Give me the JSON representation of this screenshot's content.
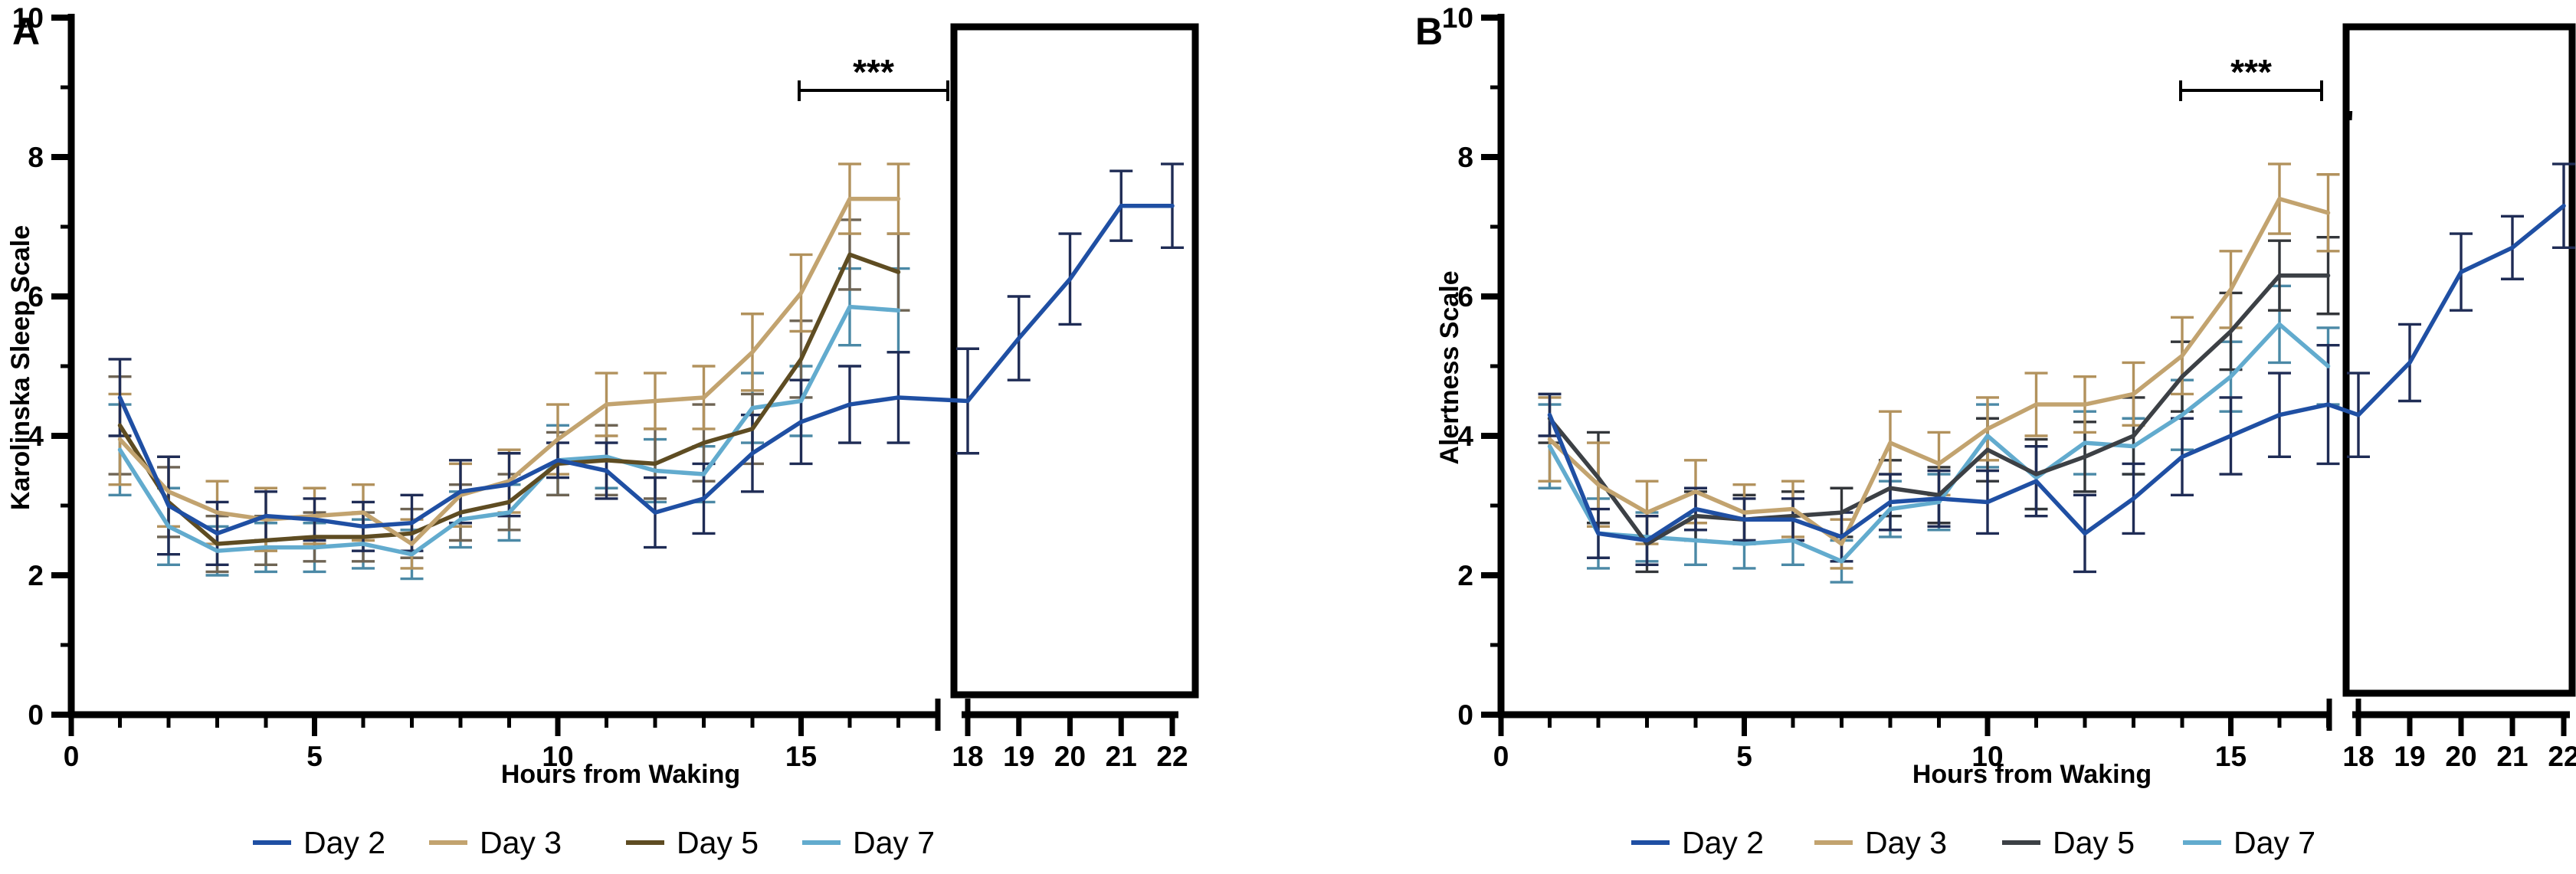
{
  "figure": {
    "background": "#ffffff",
    "axis_color": "#000000",
    "significance_label": "***"
  },
  "chart_data": [
    {
      "type": "line",
      "panel_label": "A",
      "ylabel": "Karolinska Sleep Scale",
      "xlabel": "Hours from Waking",
      "ylim": [
        0,
        10
      ],
      "yticks": [
        0,
        2,
        4,
        6,
        8,
        10
      ],
      "xticks_main": [
        0,
        5,
        10,
        15
      ],
      "xticks_box": [
        18,
        19,
        20,
        21,
        22
      ],
      "x_hours": [
        1,
        2,
        3,
        4,
        5,
        6,
        7,
        8,
        9,
        10,
        11,
        12,
        13,
        14,
        15,
        16,
        17
      ],
      "box_hours": [
        18,
        19,
        20,
        21,
        22
      ],
      "grid": "off",
      "legend_position": "bottom",
      "significance": {
        "label": "***",
        "from_hour": 15.1,
        "to_hour": 18.0
      },
      "series": [
        {
          "name": "Day 7",
          "color": "#62abce",
          "err_color": "#4b89a6",
          "values": [
            3.8,
            2.7,
            2.35,
            2.4,
            2.4,
            2.45,
            2.3,
            2.8,
            2.9,
            3.65,
            3.7,
            3.5,
            3.45,
            4.4,
            4.5,
            5.85,
            5.8
          ],
          "err": [
            0.65,
            0.55,
            0.35,
            0.35,
            0.35,
            0.35,
            0.35,
            0.4,
            0.4,
            0.5,
            0.45,
            0.45,
            0.4,
            0.5,
            0.5,
            0.55,
            0.6
          ]
        },
        {
          "name": "Day 5",
          "color": "#5e4c22",
          "err_color": "#6e6454",
          "values": [
            4.15,
            3.05,
            2.45,
            2.5,
            2.55,
            2.55,
            2.6,
            2.9,
            3.05,
            3.6,
            3.65,
            3.6,
            3.9,
            4.1,
            5.1,
            6.6,
            6.35
          ],
          "err": [
            0.7,
            0.5,
            0.4,
            0.35,
            0.35,
            0.35,
            0.35,
            0.4,
            0.4,
            0.45,
            0.5,
            0.5,
            0.55,
            0.5,
            0.55,
            0.5,
            0.55
          ]
        },
        {
          "name": "Day 3",
          "color": "#c2a36f",
          "err_color": "#b2925d",
          "values": [
            3.95,
            3.2,
            2.9,
            2.8,
            2.85,
            2.9,
            2.45,
            3.15,
            3.35,
            3.95,
            4.45,
            4.5,
            4.55,
            5.2,
            6.05,
            7.4,
            7.4
          ],
          "err": [
            0.65,
            0.5,
            0.45,
            0.45,
            0.4,
            0.4,
            0.35,
            0.45,
            0.45,
            0.5,
            0.45,
            0.4,
            0.45,
            0.55,
            0.55,
            0.5,
            0.5
          ]
        },
        {
          "name": "Day 2",
          "color": "#1f4fa3",
          "err_color": "#1f2c55",
          "values": [
            4.55,
            3.0,
            2.6,
            2.85,
            2.8,
            2.7,
            2.75,
            3.2,
            3.3,
            3.65,
            3.5,
            2.9,
            3.1,
            3.75,
            4.2,
            4.45,
            4.55
          ],
          "err": [
            0.55,
            0.7,
            0.45,
            0.35,
            0.3,
            0.35,
            0.4,
            0.45,
            0.45,
            0.25,
            0.4,
            0.5,
            0.5,
            0.55,
            0.6,
            0.55,
            0.65
          ],
          "box_values": [
            4.5,
            5.4,
            6.25,
            7.3,
            7.3
          ],
          "box_err": [
            0.75,
            0.6,
            0.65,
            0.5,
            0.6
          ]
        }
      ],
      "legend": [
        "Day 2",
        "Day 3",
        "Day 5",
        "Day 7"
      ]
    },
    {
      "type": "line",
      "panel_label": "B",
      "ylabel": "Alertness Scale",
      "xlabel": "Hours from Waking",
      "ylim": [
        0,
        10
      ],
      "yticks": [
        0,
        2,
        4,
        6,
        8,
        10
      ],
      "xticks_main": [
        0,
        5,
        10,
        15
      ],
      "xticks_box": [
        18,
        19,
        20,
        21,
        22
      ],
      "x_hours": [
        1,
        2,
        3,
        4,
        5,
        6,
        7,
        8,
        9,
        10,
        11,
        12,
        13,
        14,
        15,
        16,
        17
      ],
      "box_hours": [
        18,
        19,
        20,
        21,
        22
      ],
      "grid": "off",
      "legend_position": "bottom",
      "significance": {
        "label": "***",
        "from_hour": 14.0,
        "to_hour": 16.9
      },
      "series": [
        {
          "name": "Day 7",
          "color": "#62abce",
          "err_color": "#4b89a6",
          "values": [
            3.85,
            2.6,
            2.55,
            2.5,
            2.45,
            2.5,
            2.2,
            2.95,
            3.05,
            4.0,
            3.4,
            3.9,
            3.85,
            4.3,
            4.85,
            5.6,
            5.0
          ],
          "err": [
            0.6,
            0.5,
            0.35,
            0.35,
            0.35,
            0.35,
            0.3,
            0.4,
            0.4,
            0.45,
            0.45,
            0.45,
            0.4,
            0.5,
            0.5,
            0.55,
            0.55
          ]
        },
        {
          "name": "Day 5",
          "color": "#3c4045",
          "err_color": "#33363a",
          "values": [
            4.25,
            3.4,
            2.45,
            2.85,
            2.8,
            2.85,
            2.9,
            3.25,
            3.15,
            3.8,
            3.45,
            3.7,
            4.0,
            4.85,
            5.5,
            6.3,
            6.3
          ],
          "err": [
            0.35,
            0.65,
            0.4,
            0.35,
            0.35,
            0.35,
            0.35,
            0.4,
            0.4,
            0.45,
            0.5,
            0.5,
            0.55,
            0.5,
            0.55,
            0.5,
            0.55
          ]
        },
        {
          "name": "Day 3",
          "color": "#c2a36f",
          "err_color": "#b2925d",
          "values": [
            3.95,
            3.3,
            2.9,
            3.2,
            2.9,
            2.95,
            2.45,
            3.9,
            3.6,
            4.1,
            4.45,
            4.45,
            4.6,
            5.15,
            6.1,
            7.4,
            7.2
          ],
          "err": [
            0.6,
            0.6,
            0.45,
            0.45,
            0.4,
            0.4,
            0.35,
            0.45,
            0.45,
            0.45,
            0.45,
            0.4,
            0.45,
            0.55,
            0.55,
            0.5,
            0.55
          ]
        },
        {
          "name": "Day 2",
          "color": "#1f4fa3",
          "err_color": "#1f2c55",
          "values": [
            4.3,
            2.6,
            2.5,
            2.95,
            2.8,
            2.8,
            2.55,
            3.05,
            3.1,
            3.05,
            3.35,
            2.6,
            3.1,
            3.7,
            4.0,
            4.3,
            4.45
          ],
          "err": [
            0.3,
            0.35,
            0.35,
            0.3,
            0.3,
            0.3,
            0.35,
            0.4,
            0.4,
            0.45,
            0.5,
            0.55,
            0.5,
            0.55,
            0.55,
            0.6,
            0.85
          ],
          "box_values": [
            4.3,
            5.05,
            6.35,
            6.7,
            7.3
          ],
          "box_err": [
            0.6,
            0.55,
            0.55,
            0.45,
            0.6
          ]
        }
      ],
      "legend": [
        "Day 2",
        "Day 3",
        "Day 5",
        "Day 7"
      ]
    }
  ]
}
